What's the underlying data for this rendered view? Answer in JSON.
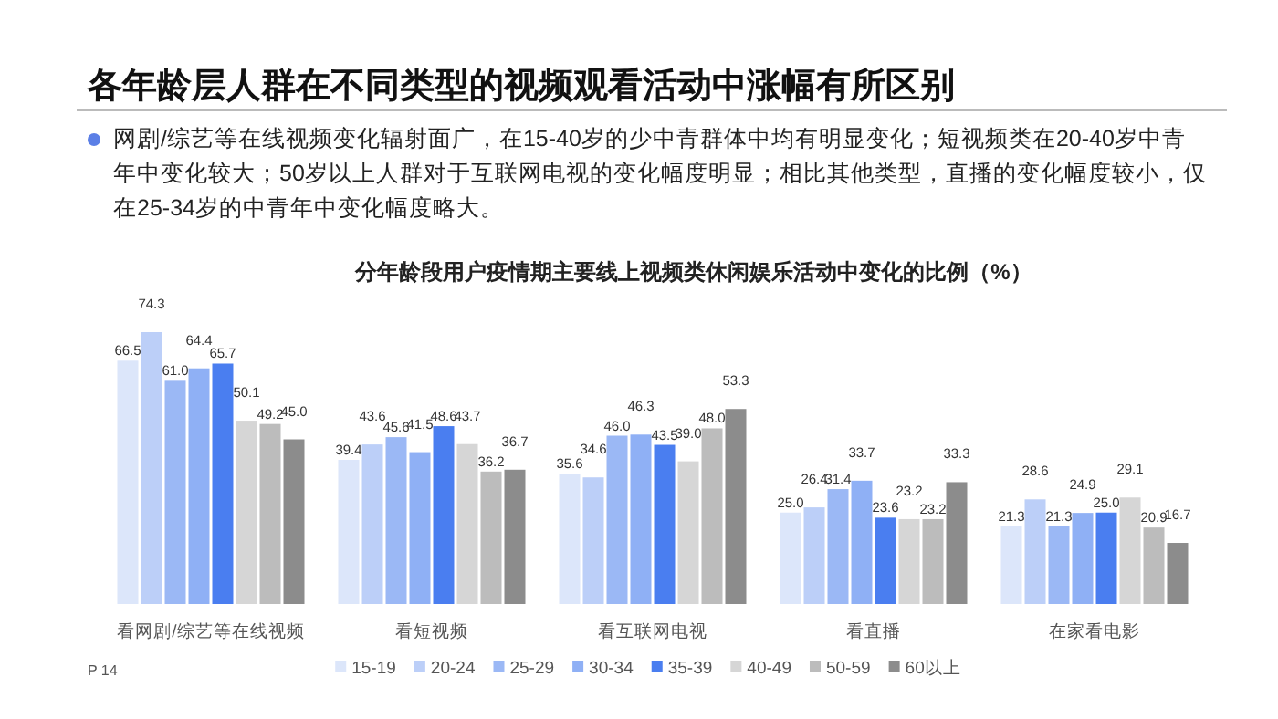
{
  "chart_data": {
    "type": "bar",
    "title": "各年龄层人群在不同类型的视频观看活动中涨幅有所区别",
    "subtitle": "网剧/综艺等在线视频变化辐射面广，在15-40岁的少中青群体中均有明显变化；短视频类在20-40岁中青年中变化较大；50岁以上人群对于互联网电视的变化幅度明显；相比其他类型，直播的变化幅度较小，仅在25-34岁的中青年中变化幅度略大。",
    "annotations": [
      "分年龄段用户疫情期主要线上视频类休闲娱乐活动中变化的比例（%）",
      "P 14"
    ],
    "categories": [
      "看网剧/综艺等在线视频",
      "看短视频",
      "看互联网电视",
      "看直播",
      "在家看电影"
    ],
    "series": [
      {
        "name": "15-19",
        "color": "#dce6fa",
        "values": [
          66.5,
          39.4,
          35.6,
          25.0,
          21.3
        ],
        "value_labels": [
          "66.5",
          "39.4",
          "35.6",
          "25.0",
          "21.3"
        ]
      },
      {
        "name": "20-24",
        "color": "#bccff8",
        "values": [
          74.3,
          43.6,
          34.6,
          26.4,
          28.6
        ],
        "value_labels": [
          "74.3",
          "43.6",
          "34.6",
          "26.4",
          "28.6"
        ]
      },
      {
        "name": "25-29",
        "color": "#9bb8f5",
        "values": [
          61.0,
          45.6,
          46.0,
          31.4,
          21.3
        ],
        "value_labels": [
          "61.0",
          "45.6",
          "46.0",
          "31.4",
          "21.3"
        ]
      },
      {
        "name": "30-34",
        "color": "#8fb0f5",
        "values": [
          64.4,
          41.5,
          46.3,
          33.7,
          24.9
        ],
        "value_labels": [
          "64.4",
          "41.5",
          "46.3",
          "33.7",
          "24.9"
        ]
      },
      {
        "name": "35-39",
        "color": "#4a7ef0",
        "values": [
          65.7,
          48.6,
          43.5,
          23.6,
          25.0
        ],
        "value_labels": [
          "65.7",
          "48.6",
          "43.5",
          "23.6",
          "25.0"
        ]
      },
      {
        "name": "40-49",
        "color": "#d6d6d6",
        "values": [
          50.1,
          43.7,
          39.0,
          23.2,
          29.1
        ],
        "value_labels": [
          "50.1",
          "43.7",
          "39.0",
          "23.2",
          "29.1"
        ]
      },
      {
        "name": "50-59",
        "color": "#bcbcbc",
        "values": [
          49.2,
          36.2,
          48.0,
          23.2,
          20.9
        ],
        "value_labels": [
          "49.2",
          "36.2",
          "48.0",
          "23.2",
          "20.9"
        ]
      },
      {
        "name": "60以上",
        "color": "#8c8c8c",
        "values": [
          45.0,
          36.7,
          53.3,
          33.3,
          16.7
        ],
        "value_labels": [
          "45.0",
          "36.7",
          "53.3",
          "33.3",
          "16.7"
        ]
      }
    ],
    "legend": "bottom"
  }
}
